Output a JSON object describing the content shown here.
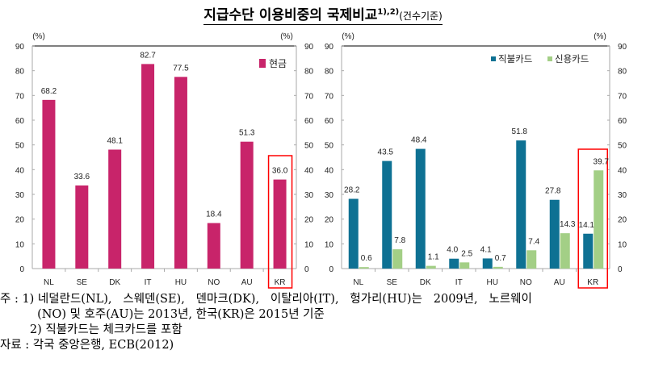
{
  "title": {
    "main": "지급수단 이용비중의 국제비교",
    "superscript": "1),2)",
    "suffix": "(건수기준)"
  },
  "chart_data": [
    {
      "type": "bar",
      "categories": [
        "NL",
        "SE",
        "DK",
        "IT",
        "HU",
        "NO",
        "AU",
        "KR"
      ],
      "series": [
        {
          "name": "현금",
          "values": [
            68.2,
            33.6,
            48.1,
            82.7,
            77.5,
            18.4,
            51.3,
            36.0
          ],
          "color": "#c8246a"
        }
      ],
      "ylim": [
        0,
        90
      ],
      "yticks": [
        0,
        10,
        20,
        30,
        40,
        50,
        60,
        70,
        80,
        90
      ],
      "yunit_left": "(%)",
      "yunit_right": "(%)",
      "legend": "top-right",
      "highlight": "KR",
      "highlight_color": "#ff0000",
      "labels": [
        "68.2",
        "33.6",
        "48.1",
        "82.7",
        "77.5",
        "18.4",
        "51.3",
        "36.0"
      ]
    },
    {
      "type": "bar",
      "categories": [
        "NL",
        "SE",
        "DK",
        "IT",
        "HU",
        "NO",
        "AU",
        "KR"
      ],
      "series": [
        {
          "name": "직불카드",
          "values": [
            28.2,
            43.5,
            48.4,
            4.0,
            4.1,
            51.8,
            27.8,
            14.1
          ],
          "color": "#0e7193",
          "labels": [
            "28.2",
            "43.5",
            "48.4",
            "4.0",
            "4.1",
            "51.8",
            "27.8",
            "14.1"
          ]
        },
        {
          "name": "신용카드",
          "values": [
            0.6,
            7.8,
            1.1,
            2.5,
            0.7,
            7.4,
            14.3,
            39.7
          ],
          "color": "#a3cf86",
          "labels": [
            "0.6",
            "7.8",
            "1.1",
            "2.5",
            "0.7",
            "7.4",
            "14.3",
            "39.7"
          ]
        }
      ],
      "ylim": [
        0,
        90
      ],
      "yticks": [
        0,
        10,
        20,
        30,
        40,
        50,
        60,
        70,
        80,
        90
      ],
      "yunit_left": "(%)",
      "yunit_right": "(%)",
      "legend": "top-right",
      "highlight": "KR",
      "highlight_color": "#ff0000"
    }
  ],
  "notes": {
    "line1": "주 : 1) 네덜란드(NL),   스웨덴(SE),   덴마크(DK),   이탈리아(IT),   헝가리(HU)는   2009년,   노르웨이",
    "line2": "          (NO) 및 호주(AU)는 2013년, 한국(KR)은 2015년 기준",
    "line3": "        2) 직불카드는 체크카드를 포함",
    "line4": "자료 : 각국 중앙은행, ECB(2012)"
  }
}
